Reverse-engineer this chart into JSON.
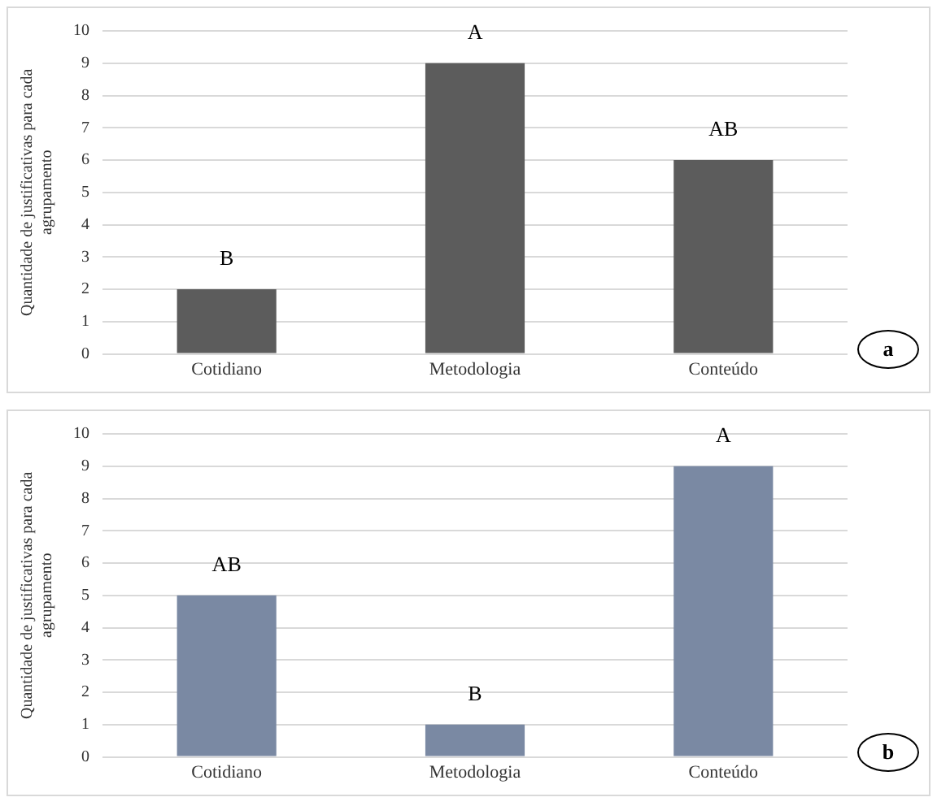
{
  "chart_data": [
    {
      "type": "bar",
      "ylabel": "Quantidade de justificativas para cada agrupamento",
      "categories": [
        "Cotidiano",
        "Metodologia",
        "Conteúdo"
      ],
      "values": [
        2,
        9,
        6
      ],
      "color": "#5c5c5c",
      "ylim": [
        0,
        10
      ],
      "yticks": [
        0,
        1,
        2,
        3,
        4,
        5,
        6,
        7,
        8,
        9,
        10
      ],
      "grid": "y",
      "annotations": [
        {
          "text": "B",
          "x": "Cotidiano",
          "y": 2
        },
        {
          "text": "A",
          "x": "Metodologia",
          "y": 9
        },
        {
          "text": "AB",
          "x": "Conteúdo",
          "y": 6
        },
        "a"
      ]
    },
    {
      "type": "bar",
      "ylabel": "Quantidade de justificativas para cada agrupamento",
      "categories": [
        "Cotidiano",
        "Metodologia",
        "Conteúdo"
      ],
      "values": [
        5,
        1,
        9
      ],
      "color": "#7a89a3",
      "ylim": [
        0,
        10
      ],
      "yticks": [
        0,
        1,
        2,
        3,
        4,
        5,
        6,
        7,
        8,
        9,
        10
      ],
      "grid": "y",
      "annotations": [
        {
          "text": "AB",
          "x": "Cotidiano",
          "y": 5
        },
        {
          "text": "B",
          "x": "Metodologia",
          "y": 1
        },
        {
          "text": "A",
          "x": "Conteúdo",
          "y": 9
        },
        "b"
      ]
    }
  ]
}
